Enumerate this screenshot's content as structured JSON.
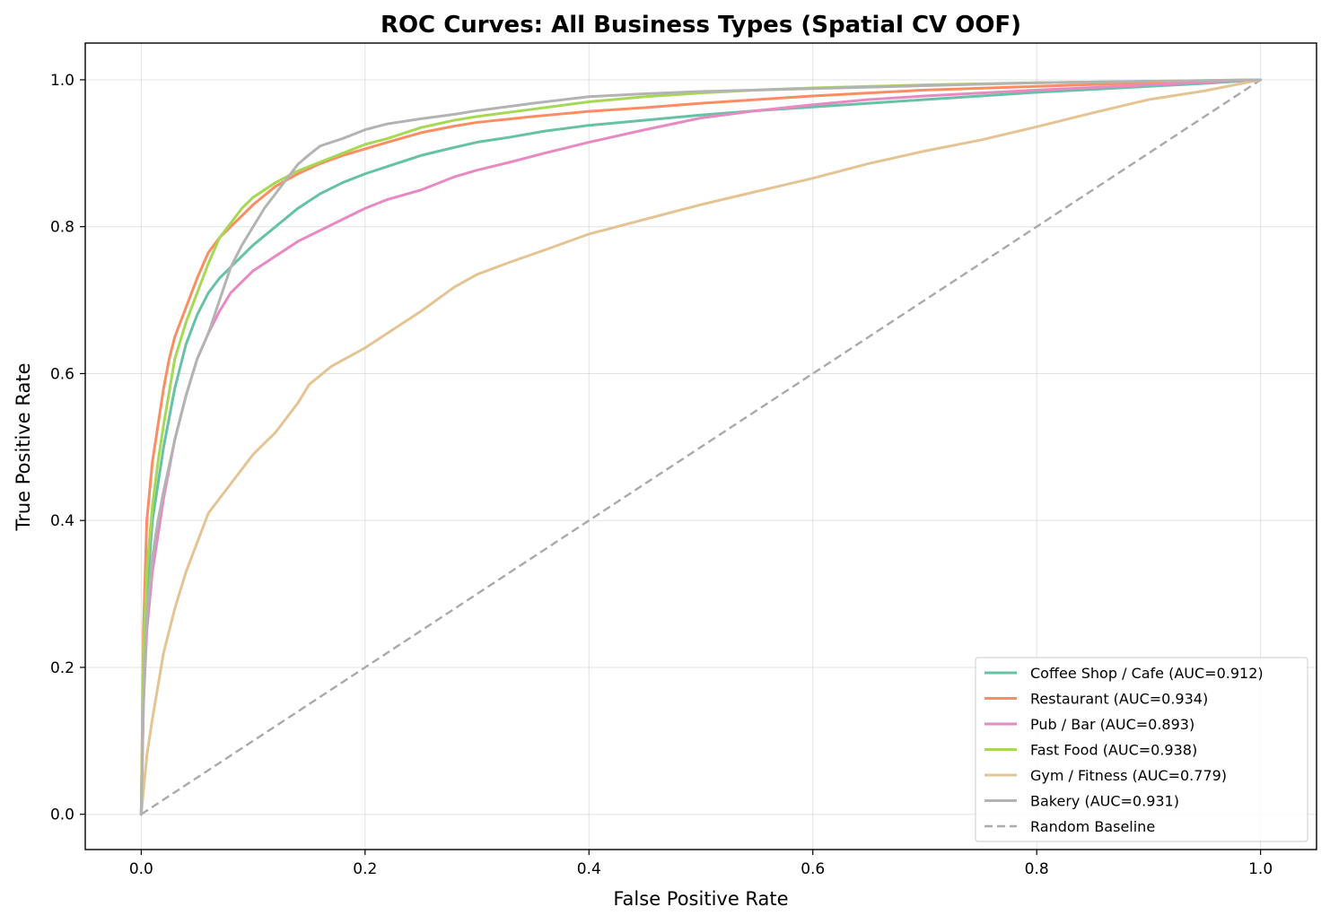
{
  "chart_data": {
    "type": "line",
    "title": "ROC Curves: All Business Types (Spatial CV OOF)",
    "xlabel": "False Positive Rate",
    "ylabel": "True Positive Rate",
    "xlim": [
      -0.05,
      1.05
    ],
    "ylim": [
      -0.048,
      1.05
    ],
    "xticks": [
      0.0,
      0.2,
      0.4,
      0.6,
      0.8,
      1.0
    ],
    "yticks": [
      0.0,
      0.2,
      0.4,
      0.6,
      0.8,
      1.0
    ],
    "xtick_labels": [
      "0.0",
      "0.2",
      "0.4",
      "0.6",
      "0.8",
      "1.0"
    ],
    "ytick_labels": [
      "0.0",
      "0.2",
      "0.4",
      "0.6",
      "0.8",
      "1.0"
    ],
    "grid": true,
    "legend_position": "bottom-right",
    "series": [
      {
        "name": "Coffee Shop / Cafe (AUC=0.912)",
        "color": "#66c2a5",
        "x": [
          0,
          0.002,
          0.005,
          0.01,
          0.015,
          0.02,
          0.03,
          0.04,
          0.05,
          0.06,
          0.07,
          0.08,
          0.09,
          0.1,
          0.12,
          0.14,
          0.16,
          0.18,
          0.2,
          0.22,
          0.25,
          0.28,
          0.3,
          0.33,
          0.36,
          0.4,
          0.45,
          0.5,
          0.55,
          0.6,
          0.65,
          0.7,
          0.75,
          0.8,
          0.85,
          0.9,
          0.95,
          1.0
        ],
        "y": [
          0,
          0.2,
          0.3,
          0.4,
          0.45,
          0.5,
          0.58,
          0.64,
          0.68,
          0.71,
          0.73,
          0.745,
          0.76,
          0.775,
          0.8,
          0.825,
          0.845,
          0.86,
          0.872,
          0.882,
          0.897,
          0.908,
          0.915,
          0.922,
          0.93,
          0.938,
          0.945,
          0.952,
          0.958,
          0.963,
          0.968,
          0.973,
          0.978,
          0.983,
          0.987,
          0.991,
          0.995,
          1.0
        ]
      },
      {
        "name": "Restaurant (AUC=0.934)",
        "color": "#fc8d62",
        "x": [
          0,
          0.002,
          0.005,
          0.01,
          0.015,
          0.02,
          0.025,
          0.03,
          0.04,
          0.05,
          0.06,
          0.07,
          0.08,
          0.09,
          0.1,
          0.12,
          0.14,
          0.16,
          0.18,
          0.2,
          0.22,
          0.25,
          0.28,
          0.3,
          0.35,
          0.4,
          0.45,
          0.5,
          0.55,
          0.6,
          0.65,
          0.7,
          0.8,
          0.9,
          1.0
        ],
        "y": [
          0,
          0.25,
          0.4,
          0.48,
          0.53,
          0.58,
          0.62,
          0.65,
          0.69,
          0.73,
          0.765,
          0.785,
          0.8,
          0.815,
          0.83,
          0.855,
          0.872,
          0.886,
          0.897,
          0.906,
          0.915,
          0.928,
          0.937,
          0.942,
          0.95,
          0.957,
          0.962,
          0.968,
          0.973,
          0.978,
          0.982,
          0.986,
          0.991,
          0.996,
          1.0
        ]
      },
      {
        "name": "Pub / Bar (AUC=0.893)",
        "color": "#e78ac3",
        "x": [
          0,
          0.002,
          0.005,
          0.01,
          0.015,
          0.02,
          0.03,
          0.04,
          0.05,
          0.06,
          0.07,
          0.08,
          0.09,
          0.1,
          0.12,
          0.14,
          0.16,
          0.18,
          0.2,
          0.22,
          0.25,
          0.28,
          0.3,
          0.33,
          0.36,
          0.4,
          0.45,
          0.5,
          0.55,
          0.6,
          0.65,
          0.7,
          0.8,
          0.9,
          1.0
        ],
        "y": [
          0,
          0.15,
          0.25,
          0.33,
          0.38,
          0.43,
          0.51,
          0.57,
          0.62,
          0.655,
          0.685,
          0.71,
          0.725,
          0.74,
          0.76,
          0.78,
          0.795,
          0.81,
          0.825,
          0.837,
          0.85,
          0.868,
          0.877,
          0.888,
          0.9,
          0.915,
          0.932,
          0.948,
          0.958,
          0.966,
          0.973,
          0.978,
          0.986,
          0.993,
          1.0
        ]
      },
      {
        "name": "Fast Food (AUC=0.938)",
        "color": "#a6d854",
        "x": [
          0,
          0.002,
          0.005,
          0.01,
          0.015,
          0.02,
          0.03,
          0.04,
          0.05,
          0.06,
          0.07,
          0.08,
          0.09,
          0.1,
          0.12,
          0.14,
          0.16,
          0.18,
          0.2,
          0.22,
          0.25,
          0.28,
          0.3,
          0.35,
          0.4,
          0.45,
          0.5,
          0.55,
          0.6,
          0.7,
          0.8,
          0.9,
          1.0
        ],
        "y": [
          0,
          0.22,
          0.33,
          0.42,
          0.48,
          0.53,
          0.62,
          0.67,
          0.71,
          0.75,
          0.785,
          0.805,
          0.825,
          0.84,
          0.86,
          0.876,
          0.888,
          0.9,
          0.912,
          0.92,
          0.935,
          0.945,
          0.95,
          0.96,
          0.97,
          0.977,
          0.982,
          0.986,
          0.989,
          0.993,
          0.996,
          0.998,
          1.0
        ]
      },
      {
        "name": "Gym / Fitness (AUC=0.779)",
        "color": "#e5c494",
        "x": [
          0,
          0.005,
          0.01,
          0.02,
          0.03,
          0.04,
          0.05,
          0.06,
          0.07,
          0.08,
          0.09,
          0.1,
          0.12,
          0.14,
          0.15,
          0.17,
          0.2,
          0.22,
          0.25,
          0.28,
          0.3,
          0.33,
          0.36,
          0.4,
          0.45,
          0.5,
          0.55,
          0.6,
          0.65,
          0.7,
          0.75,
          0.8,
          0.85,
          0.9,
          0.95,
          1.0
        ],
        "y": [
          0,
          0.08,
          0.13,
          0.22,
          0.28,
          0.33,
          0.37,
          0.41,
          0.43,
          0.45,
          0.47,
          0.49,
          0.52,
          0.56,
          0.585,
          0.61,
          0.635,
          0.655,
          0.685,
          0.718,
          0.735,
          0.752,
          0.768,
          0.79,
          0.81,
          0.83,
          0.848,
          0.866,
          0.886,
          0.903,
          0.918,
          0.936,
          0.955,
          0.973,
          0.985,
          1.0
        ]
      },
      {
        "name": "Bakery (AUC=0.931)",
        "color": "#b3b3b3",
        "x": [
          0,
          0.002,
          0.005,
          0.01,
          0.015,
          0.02,
          0.03,
          0.04,
          0.05,
          0.06,
          0.07,
          0.08,
          0.09,
          0.1,
          0.11,
          0.12,
          0.13,
          0.14,
          0.15,
          0.16,
          0.18,
          0.2,
          0.22,
          0.25,
          0.28,
          0.3,
          0.35,
          0.4,
          0.45,
          0.5,
          0.6,
          0.7,
          0.8,
          0.9,
          1.0
        ],
        "y": [
          0,
          0.15,
          0.27,
          0.35,
          0.4,
          0.44,
          0.51,
          0.57,
          0.62,
          0.655,
          0.7,
          0.745,
          0.775,
          0.8,
          0.825,
          0.845,
          0.865,
          0.885,
          0.898,
          0.91,
          0.92,
          0.932,
          0.94,
          0.947,
          0.953,
          0.958,
          0.968,
          0.977,
          0.981,
          0.984,
          0.988,
          0.992,
          0.996,
          0.998,
          1.0
        ]
      }
    ],
    "baseline": {
      "name": "Random Baseline",
      "color": "#aaaaaa",
      "x": [
        0,
        1
      ],
      "y": [
        0,
        1
      ]
    }
  }
}
